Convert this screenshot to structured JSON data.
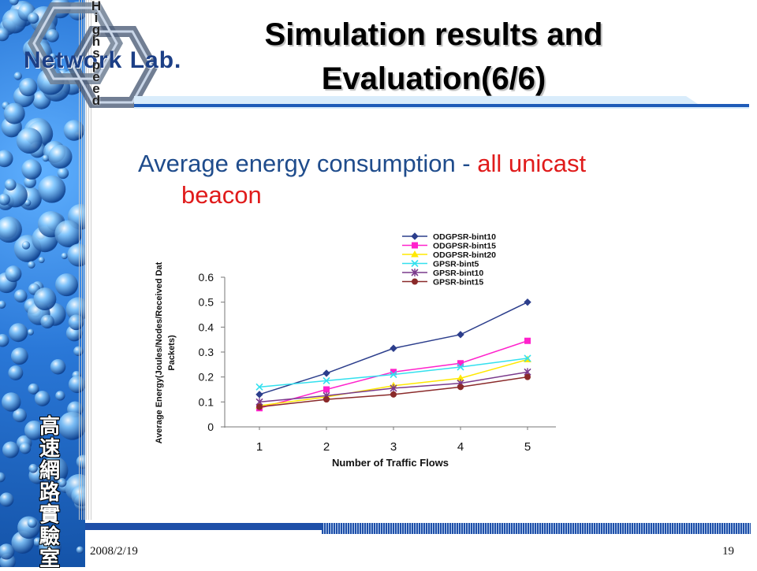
{
  "slide": {
    "title_line1": "Simulation results and",
    "title_line2": "Evaluation(6/6)",
    "subtitle_main": "Average energy consumption - ",
    "subtitle_highlight_a": "all unicast",
    "subtitle_highlight_b": "beacon",
    "date": "2008/2/19",
    "page_number": "19",
    "logo_text": "Network Lab.",
    "logo_vertical": [
      "H",
      "i",
      "g",
      "h",
      "s",
      "p",
      "e",
      "e",
      "d"
    ],
    "lab_name_chars": [
      "高",
      "速",
      "網",
      "路",
      "實",
      "驗",
      "室"
    ]
  },
  "colors": {
    "title_text": "#000000",
    "subtitle_text": "#1f4c8c",
    "highlight_text": "#e01b1b",
    "sidebar_blue": "#2a78d8",
    "rule_blue": "#1e5bb8"
  },
  "chart_data": {
    "type": "line",
    "xlabel": "Number of Traffic Flows",
    "ylabel_line1": "Average Energy(Joules/Nodes/Received Dat",
    "ylabel_line2": "Packets)",
    "x": [
      1,
      2,
      3,
      4,
      5
    ],
    "ylim": [
      0,
      0.6
    ],
    "yticks": [
      "0",
      "0.1",
      "0.2",
      "0.3",
      "0.4",
      "0.5",
      "0.6"
    ],
    "legend_position": "top-right",
    "grid": false,
    "series": [
      {
        "name": "ODGPSR-bint10",
        "color": "#2c3e8c",
        "marker": "diamond",
        "values": [
          0.13,
          0.215,
          0.315,
          0.37,
          0.5
        ]
      },
      {
        "name": "ODGPSR-bint15",
        "color": "#ff22cc",
        "marker": "square",
        "values": [
          0.075,
          0.15,
          0.22,
          0.255,
          0.345
        ]
      },
      {
        "name": "ODGPSR-bint20",
        "color": "#ffe800",
        "marker": "triangle",
        "values": [
          0.085,
          0.12,
          0.165,
          0.195,
          0.27
        ]
      },
      {
        "name": "GPSR-bint5",
        "color": "#33e0ee",
        "marker": "x",
        "values": [
          0.16,
          0.185,
          0.21,
          0.24,
          0.275
        ]
      },
      {
        "name": "GPSR-bint10",
        "color": "#7a3a8c",
        "marker": "star",
        "values": [
          0.1,
          0.125,
          0.155,
          0.175,
          0.22
        ]
      },
      {
        "name": "GPSR-bint15",
        "color": "#8a2a2a",
        "marker": "circle",
        "values": [
          0.08,
          0.11,
          0.13,
          0.16,
          0.2
        ]
      }
    ]
  }
}
